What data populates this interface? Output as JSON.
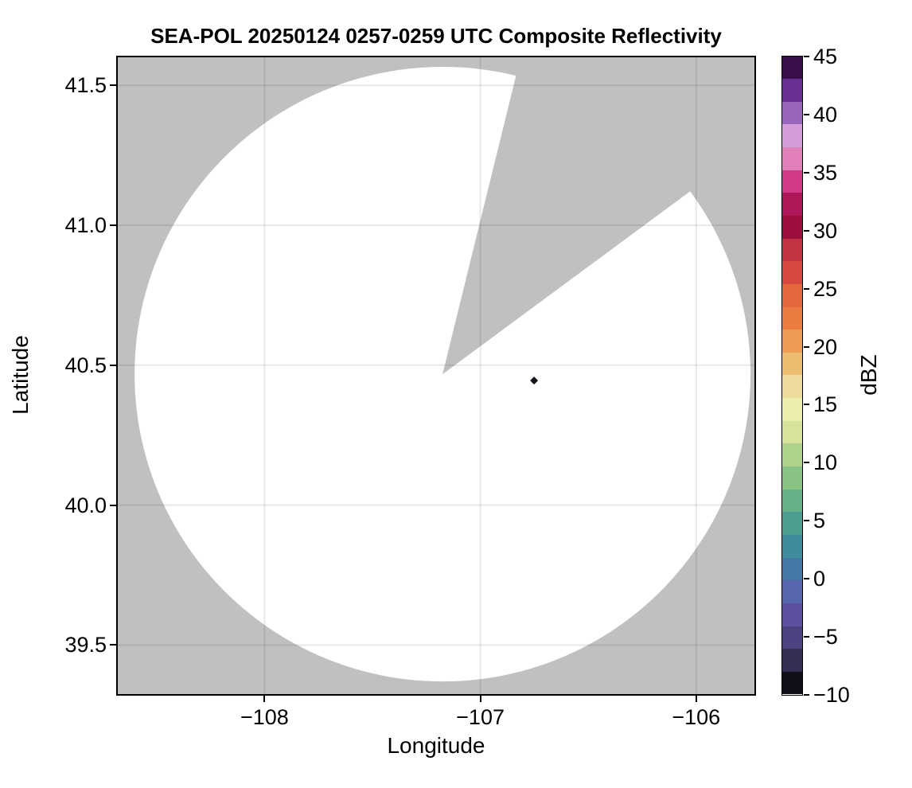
{
  "page": {
    "background": "#ffffff"
  },
  "chart_data": {
    "type": "heatmap",
    "subtype": "radar_ppi_composite_reflectivity",
    "title": "SEA-POL 20250124 0257-0259 UTC Composite Reflectivity",
    "xlabel": "Longitude",
    "ylabel": "Latitude",
    "xlim": [
      -108.68,
      -105.73
    ],
    "ylim": [
      39.325,
      41.6
    ],
    "xticks": {
      "values": [
        -108,
        -107,
        -106
      ],
      "labels": [
        "−108",
        "−107",
        "−106"
      ]
    },
    "yticks": {
      "values": [
        41.5,
        41.0,
        40.5,
        40.0,
        39.5
      ],
      "labels": [
        "41.5",
        "41.0",
        "40.5",
        "40.0",
        "39.5"
      ]
    },
    "grid": true,
    "legend_position": "none",
    "colors": {
      "no_data_background": "#c0c0c0",
      "coverage_fill": "#ffffff",
      "gridline": "rgba(0,0,0,0.09)",
      "spine": "#000000"
    },
    "radar_coverage": {
      "center_lon": -107.175,
      "center_lat": 40.468,
      "radius_lon_deg": 1.427,
      "radius_lat_deg": 1.098,
      "missing_sector_azimuth_deg": [
        13.8,
        53.5
      ]
    },
    "echoes": [
      {
        "lon": -106.751,
        "lat": 40.445,
        "approx_dbz": -8,
        "color": "#17141d"
      }
    ],
    "colorbar": {
      "label": "dBZ",
      "vmin": -10,
      "vmax": 45,
      "tick_values": [
        45,
        40,
        35,
        30,
        25,
        20,
        15,
        10,
        5,
        0,
        -5,
        -10
      ],
      "tick_labels": [
        "45",
        "40",
        "35",
        "30",
        "25",
        "20",
        "15",
        "10",
        "5",
        "0",
        "−5",
        "−10"
      ],
      "band_colors": [
        "#3a0d4d",
        "#6b2f93",
        "#9a63bc",
        "#d49cd8",
        "#e07fb8",
        "#d23a85",
        "#ae1758",
        "#9c0f3c",
        "#c23540",
        "#d84a41",
        "#e4663c",
        "#ea7c42",
        "#eb9b54",
        "#ecbd70",
        "#efdc9c",
        "#eceeae",
        "#d5e49a",
        "#aed289",
        "#89c283",
        "#64b087",
        "#4c9f90",
        "#3f8c9c",
        "#4479a5",
        "#5766ae",
        "#5b51a0",
        "#4b4380",
        "#352f55",
        "#100e16"
      ]
    }
  }
}
